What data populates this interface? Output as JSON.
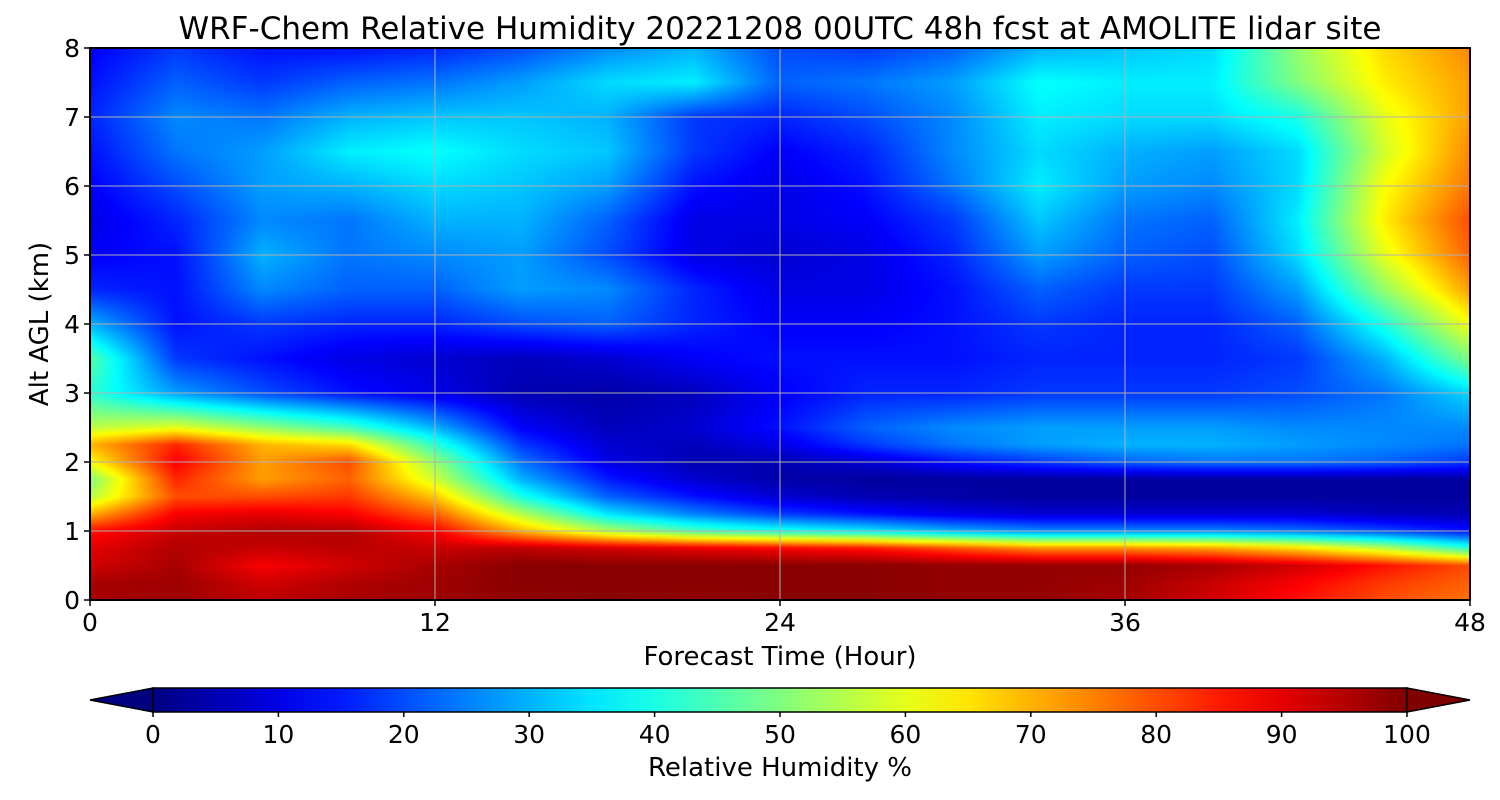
{
  "chart_data": {
    "type": "heatmap",
    "title": "WRF-Chem Relative Humidity 20221208 00UTC 48h fcst at AMOLITE lidar site",
    "xlabel": "Forecast Time (Hour)",
    "ylabel": "Alt AGL (km)",
    "xlim": [
      0,
      48
    ],
    "ylim": [
      0,
      8
    ],
    "x_ticks": [
      0,
      12,
      24,
      36,
      48
    ],
    "x_tick_labels": [
      "0",
      "12",
      "24",
      "36",
      "48"
    ],
    "y_ticks": [
      0,
      1,
      2,
      3,
      4,
      5,
      6,
      7,
      8
    ],
    "y_tick_labels": [
      "0",
      "1",
      "2",
      "3",
      "4",
      "5",
      "6",
      "7",
      "8"
    ],
    "grid": true,
    "colormap": "jet",
    "colorbar": {
      "label": "Relative Humidity %",
      "min": 0,
      "max": 100,
      "ticks": [
        0,
        10,
        20,
        30,
        40,
        50,
        60,
        70,
        80,
        90,
        100
      ],
      "tick_labels": [
        "0",
        "10",
        "20",
        "30",
        "40",
        "50",
        "60",
        "70",
        "80",
        "90",
        "100"
      ],
      "extend": "both",
      "orientation": "horizontal"
    },
    "x": [
      0,
      3,
      6,
      9,
      12,
      15,
      18,
      21,
      24,
      27,
      30,
      33,
      36,
      39,
      42,
      45,
      48
    ],
    "y": [
      0,
      0.25,
      0.5,
      0.75,
      1.0,
      1.25,
      1.5,
      1.75,
      2.0,
      2.25,
      2.5,
      3.0,
      3.5,
      4.0,
      4.5,
      5.0,
      5.5,
      6.0,
      6.5,
      7.0,
      7.5,
      8.0
    ],
    "values": [
      [
        96,
        97,
        94,
        96,
        97,
        98,
        99,
        98,
        99,
        99,
        98,
        98,
        96,
        92,
        86,
        80,
        76
      ],
      [
        96,
        97,
        92,
        95,
        97,
        99,
        99,
        99,
        99,
        99,
        98,
        98,
        97,
        93,
        88,
        82,
        78
      ],
      [
        92,
        96,
        88,
        92,
        96,
        99,
        99,
        99,
        99,
        99,
        98,
        98,
        98,
        96,
        92,
        86,
        80
      ],
      [
        90,
        95,
        93,
        94,
        93,
        94,
        92,
        90,
        88,
        86,
        80,
        74,
        74,
        72,
        66,
        56,
        42
      ],
      [
        86,
        93,
        95,
        95,
        88,
        70,
        55,
        45,
        40,
        36,
        30,
        26,
        26,
        26,
        24,
        20,
        14
      ],
      [
        70,
        88,
        90,
        88,
        78,
        55,
        35,
        25,
        18,
        14,
        10,
        8,
        8,
        8,
        8,
        6,
        5
      ],
      [
        55,
        80,
        80,
        82,
        68,
        40,
        22,
        14,
        8,
        5,
        4,
        3,
        3,
        3,
        3,
        3,
        3
      ],
      [
        50,
        84,
        72,
        78,
        58,
        30,
        15,
        8,
        4,
        3,
        3,
        3,
        3,
        3,
        3,
        3,
        3
      ],
      [
        62,
        88,
        72,
        80,
        52,
        24,
        10,
        5,
        5,
        8,
        14,
        18,
        22,
        24,
        24,
        22,
        18
      ],
      [
        70,
        84,
        70,
        66,
        42,
        18,
        8,
        6,
        10,
        18,
        24,
        28,
        30,
        30,
        28,
        26,
        24
      ],
      [
        56,
        60,
        52,
        44,
        30,
        12,
        6,
        8,
        14,
        22,
        26,
        28,
        28,
        28,
        26,
        26,
        26
      ],
      [
        42,
        28,
        20,
        14,
        10,
        5,
        4,
        6,
        12,
        16,
        16,
        18,
        18,
        18,
        20,
        24,
        34
      ],
      [
        46,
        18,
        14,
        10,
        8,
        6,
        8,
        12,
        14,
        14,
        14,
        16,
        16,
        16,
        18,
        30,
        50
      ],
      [
        30,
        14,
        18,
        16,
        16,
        20,
        22,
        16,
        12,
        12,
        14,
        18,
        16,
        16,
        22,
        40,
        62
      ],
      [
        16,
        14,
        26,
        22,
        22,
        28,
        26,
        16,
        10,
        10,
        14,
        22,
        18,
        18,
        28,
        52,
        72
      ],
      [
        12,
        14,
        30,
        24,
        26,
        28,
        20,
        10,
        8,
        10,
        16,
        28,
        22,
        20,
        34,
        60,
        78
      ],
      [
        10,
        16,
        26,
        24,
        30,
        30,
        22,
        10,
        10,
        12,
        18,
        32,
        24,
        22,
        36,
        64,
        80
      ],
      [
        12,
        20,
        28,
        30,
        34,
        32,
        28,
        14,
        10,
        14,
        24,
        36,
        28,
        26,
        34,
        62,
        76
      ],
      [
        14,
        24,
        28,
        36,
        38,
        34,
        32,
        18,
        12,
        16,
        26,
        34,
        30,
        28,
        34,
        58,
        74
      ],
      [
        16,
        26,
        24,
        30,
        32,
        32,
        30,
        18,
        16,
        20,
        26,
        36,
        34,
        34,
        40,
        60,
        72
      ],
      [
        14,
        22,
        18,
        22,
        24,
        28,
        34,
        36,
        22,
        24,
        28,
        38,
        36,
        36,
        50,
        64,
        72
      ],
      [
        12,
        18,
        14,
        14,
        16,
        20,
        26,
        30,
        20,
        18,
        22,
        30,
        32,
        34,
        52,
        66,
        74
      ]
    ]
  }
}
